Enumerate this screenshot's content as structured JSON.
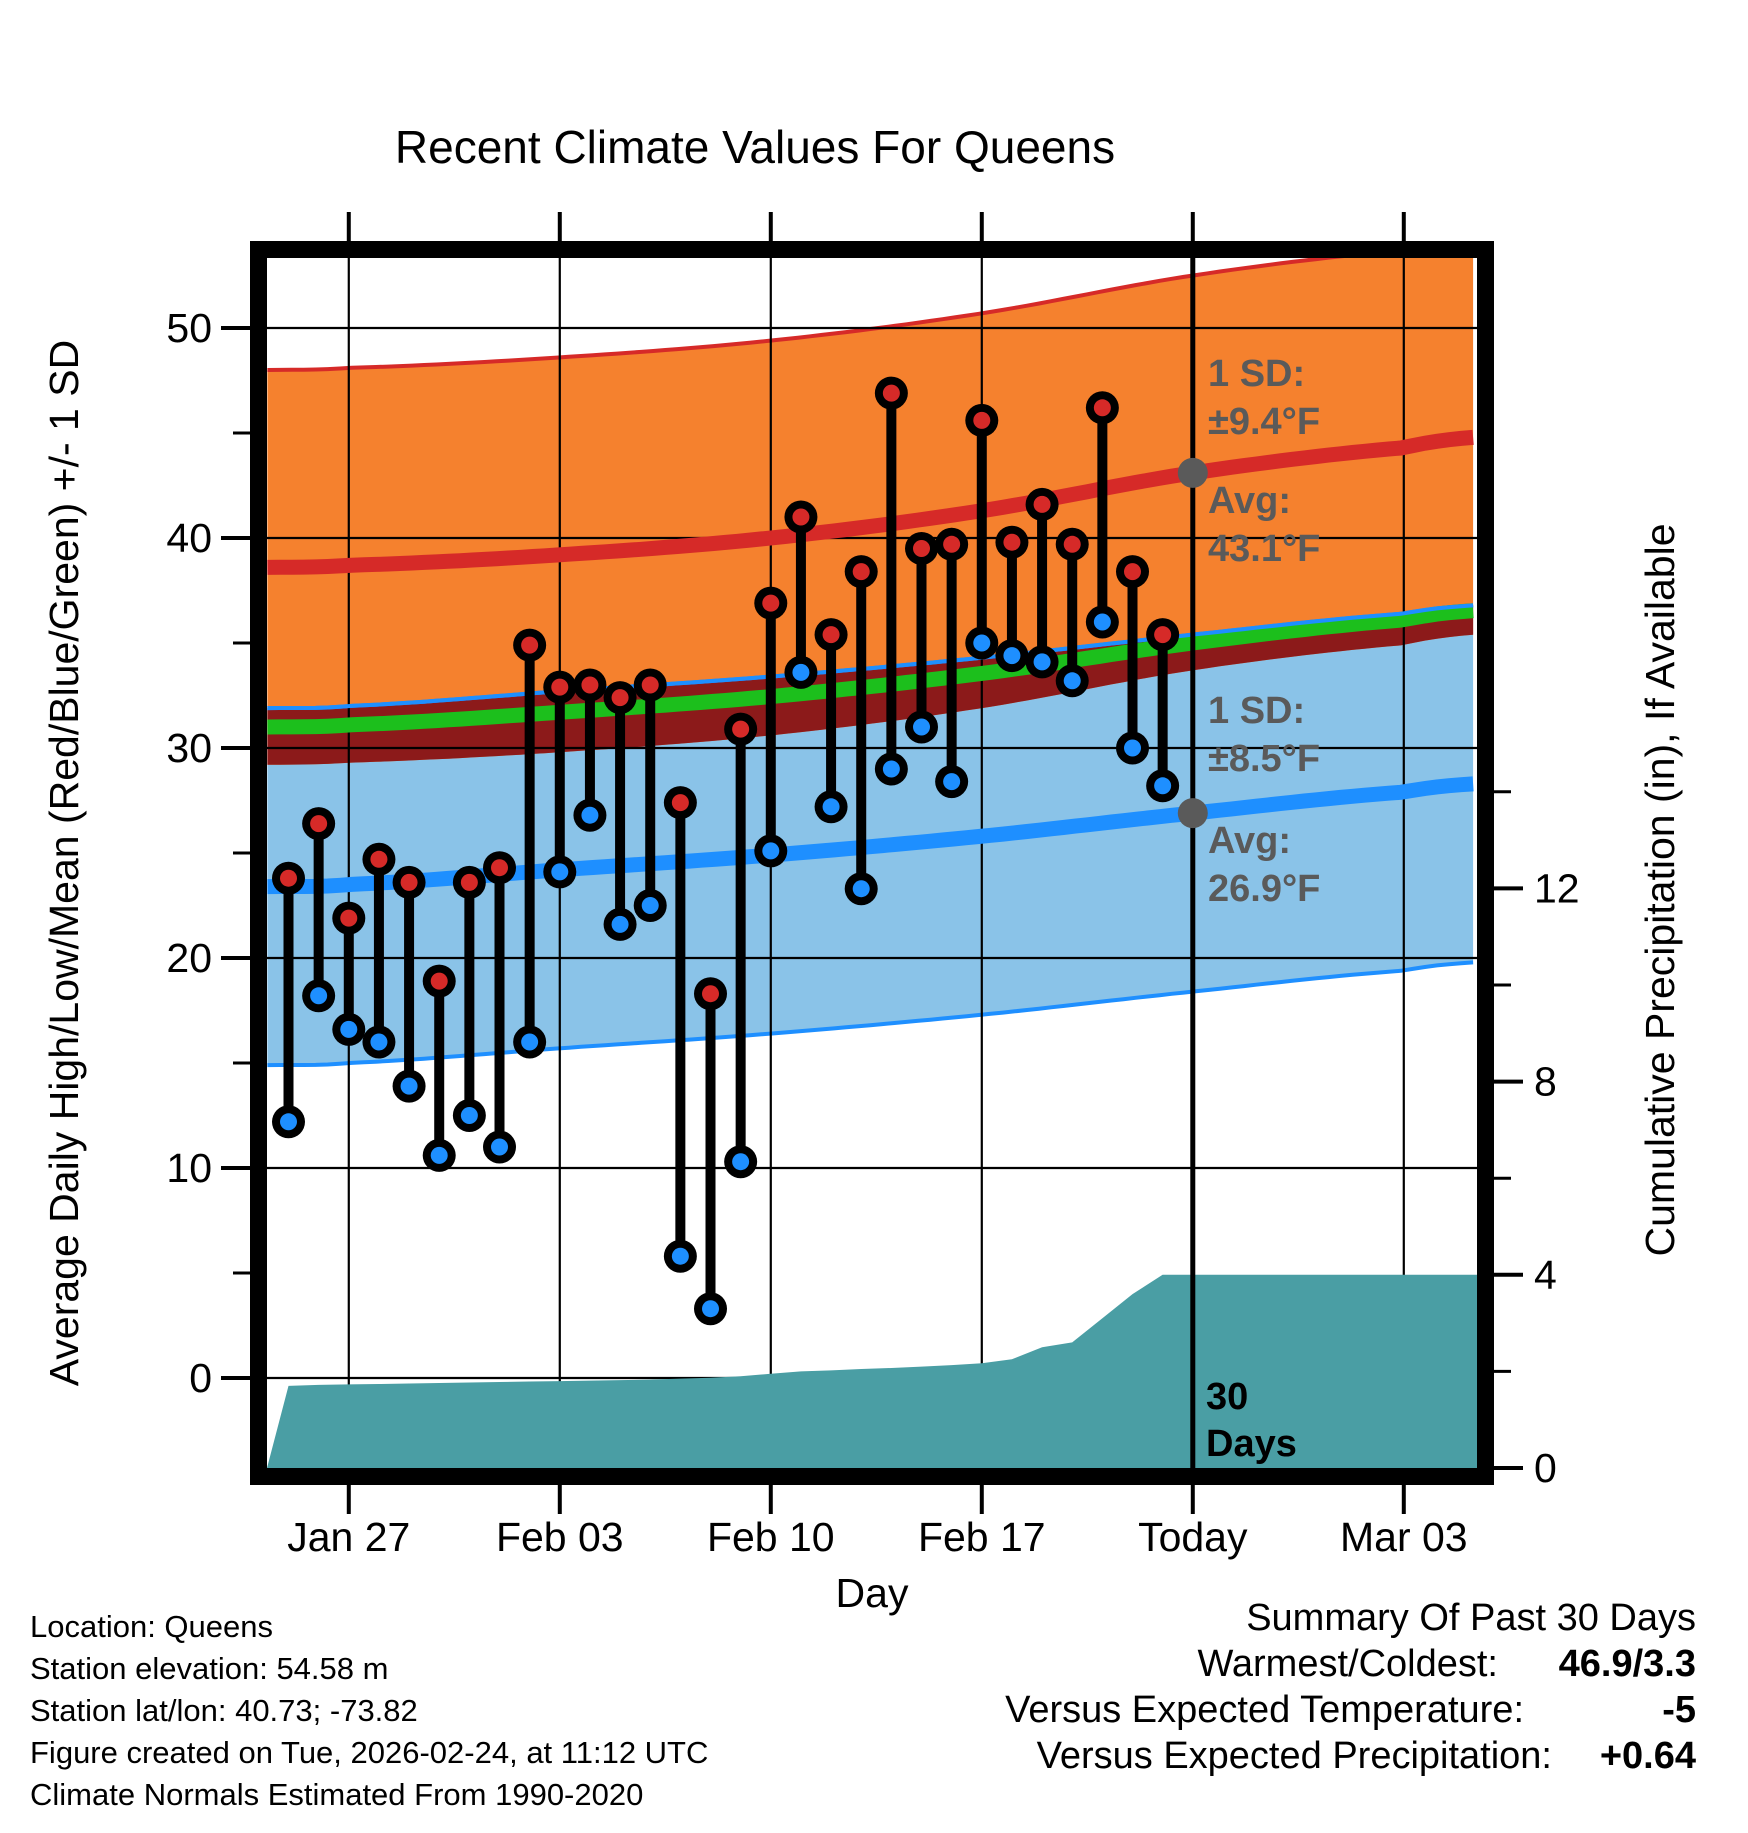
{
  "chart_data": {
    "type": "line+scatter+area",
    "title": "Recent Climate Values For Queens",
    "xlabel": "Day",
    "ylabel_left": "Average Daily High/Low/Mean (Red/Blue/Green) +/- 1 SD",
    "ylabel_right": "Cumulative Precipitation (in), If Available",
    "x_tick_labels": [
      "Jan 27",
      "Feb 03",
      "Feb 10",
      "Feb 17",
      "Today",
      "Mar 03"
    ],
    "x_tick_days": [
      2,
      9,
      16,
      23,
      30,
      37
    ],
    "y_left_ticks": [
      0,
      10,
      20,
      30,
      40,
      50
    ],
    "y_left_minor_ticks": [
      5,
      15,
      25,
      35,
      45
    ],
    "y_right_ticks": [
      0,
      4,
      8,
      12
    ],
    "y_right_minor_ticks": [
      2,
      6,
      10,
      14
    ],
    "grid": true,
    "dates": [
      "Jan 25",
      "Jan 26",
      "Jan 27",
      "Jan 28",
      "Jan 29",
      "Jan 30",
      "Jan 31",
      "Feb 01",
      "Feb 02",
      "Feb 03",
      "Feb 04",
      "Feb 05",
      "Feb 06",
      "Feb 07",
      "Feb 08",
      "Feb 09",
      "Feb 10",
      "Feb 11",
      "Feb 12",
      "Feb 13",
      "Feb 14",
      "Feb 15",
      "Feb 16",
      "Feb 17",
      "Feb 18",
      "Feb 19",
      "Feb 20",
      "Feb 21",
      "Feb 22",
      "Feb 23"
    ],
    "daily_high_f": [
      23.8,
      26.4,
      21.9,
      24.7,
      23.6,
      18.9,
      23.6,
      24.3,
      34.9,
      32.9,
      33.0,
      32.4,
      33.0,
      27.4,
      18.3,
      30.9,
      36.9,
      41.0,
      35.4,
      38.4,
      46.9,
      39.5,
      39.7,
      45.6,
      39.8,
      41.6,
      39.7,
      46.2,
      38.4,
      35.4
    ],
    "daily_low_f": [
      12.2,
      18.2,
      16.6,
      16.0,
      13.9,
      10.6,
      12.5,
      11.0,
      16.0,
      24.1,
      26.8,
      21.6,
      22.5,
      5.8,
      3.3,
      10.3,
      25.1,
      33.6,
      27.2,
      23.3,
      29.0,
      31.0,
      28.4,
      35.0,
      34.4,
      34.1,
      33.2,
      36.0,
      30.0,
      28.2
    ],
    "cumulative_precip_in": [
      1.7,
      1.72,
      1.73,
      1.74,
      1.75,
      1.76,
      1.77,
      1.78,
      1.79,
      1.8,
      1.81,
      1.82,
      1.83,
      1.85,
      1.87,
      1.9,
      1.95,
      2.0,
      2.02,
      2.05,
      2.07,
      2.1,
      2.13,
      2.17,
      2.25,
      2.5,
      2.6,
      3.1,
      3.6,
      4.0
    ],
    "normals": {
      "sample_days": [
        -0.7,
        2,
        9,
        16,
        23,
        30,
        37,
        39.4
      ],
      "high_mean_f": [
        38.6,
        38.7,
        39.2,
        40.0,
        41.3,
        43.1,
        44.3,
        44.8
      ],
      "low_mean_f": [
        23.4,
        23.5,
        24.2,
        24.9,
        25.8,
        26.9,
        27.9,
        28.3
      ],
      "high_sd_f": 9.4,
      "low_sd_f": 8.5
    },
    "today_day_index": 30,
    "annotations": {
      "high_sd_line1": "1 SD:",
      "high_sd_line2": "±9.4°F",
      "high_avg_line1": "Avg:",
      "high_avg_line2": "43.1°F",
      "low_sd_line1": "1 SD:",
      "low_sd_line2": "±8.5°F",
      "low_avg_line1": "Avg:",
      "low_avg_line2": "26.9°F",
      "today_line1": "30",
      "today_line2": "Days",
      "today_avg_high_f": 43.1,
      "today_avg_low_f": 26.9
    }
  },
  "footer": {
    "location": "Location: Queens",
    "elevation": "Station elevation: 54.58 m",
    "latlon": "Station lat/lon: 40.73; -73.82",
    "created": "Figure created on Tue, 2026-02-24, at 11:12 UTC",
    "normals_note": "Climate Normals Estimated From 1990-2020"
  },
  "summary": {
    "title": "Summary Of Past 30 Days",
    "warmest": {
      "label": "Warmest/Coldest:",
      "value": "46.9/3.3"
    },
    "vs_temp": {
      "label": "Versus Expected Temperature:",
      "value": "-5"
    },
    "vs_precip": {
      "label": "Versus Expected Precipitation:",
      "value": "+0.64"
    }
  },
  "colors": {
    "high_band": "#F5812E",
    "high_mean_line": "#D62A28",
    "band_overlap_maroon": "#8C1A1A",
    "mean_green_line": "#1CBF1C",
    "low_band": "#8AC3E8",
    "low_mean_line": "#1E8FFF",
    "precip_area": "#4A9EA4",
    "marker_high": "#D62A28",
    "marker_low": "#1E8FFF",
    "annotation_gray": "#5A5A5A",
    "vs_temp_value": "#1E90FF",
    "vs_precip_value": "#00C800"
  }
}
